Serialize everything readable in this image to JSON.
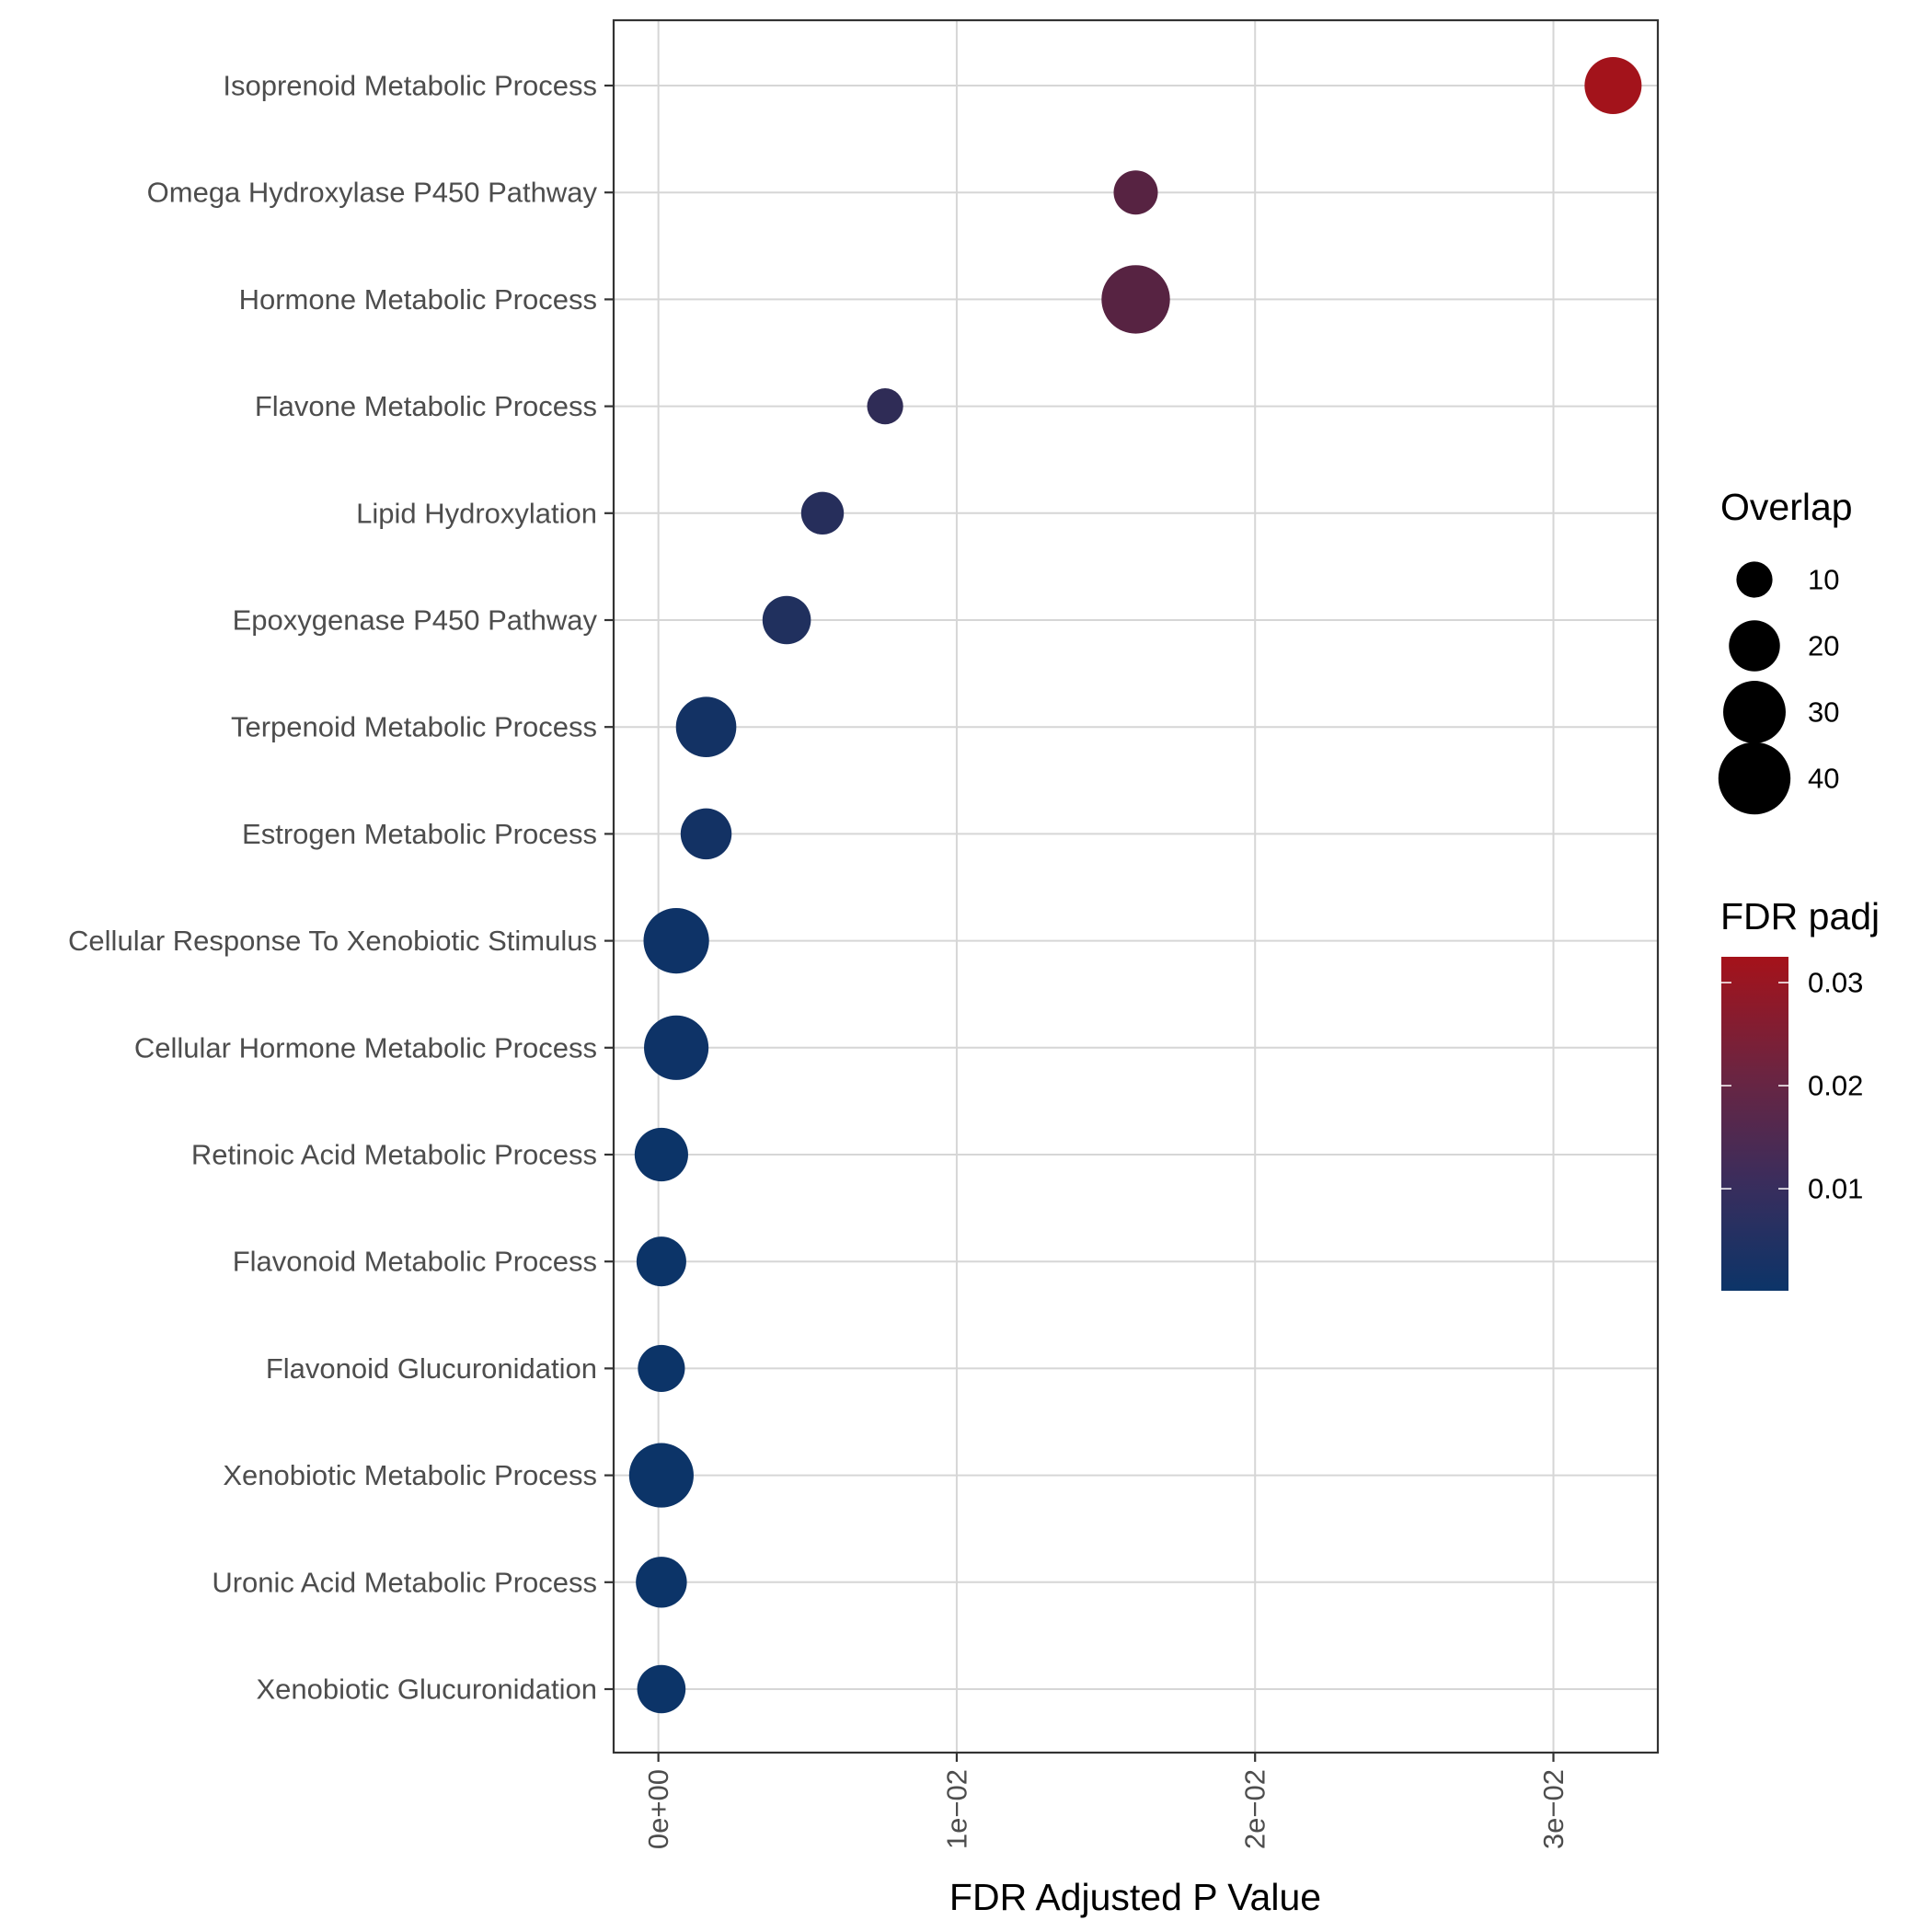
{
  "chart_data": {
    "type": "scatter",
    "xlabel": "FDR Adjusted P Value",
    "ylabel": "",
    "xlim": [
      -0.0015,
      0.0335
    ],
    "x_ticks": [
      0,
      0.01,
      0.02,
      0.03
    ],
    "x_tick_labels": [
      "0e+00",
      "1e−02",
      "2e−02",
      "3e−02"
    ],
    "grid": true,
    "categories": [
      "Isoprenoid Metabolic Process",
      "Omega Hydroxylase P450 Pathway",
      "Hormone Metabolic Process",
      "Flavone Metabolic Process",
      "Lipid Hydroxylation",
      "Epoxygenase P450 Pathway",
      "Terpenoid Metabolic Process",
      "Estrogen Metabolic Process",
      "Cellular Response To Xenobiotic Stimulus",
      "Cellular Hormone Metabolic Process",
      "Retinoic Acid Metabolic Process",
      "Flavonoid Metabolic Process",
      "Flavonoid Glucuronidation",
      "Xenobiotic Metabolic Process",
      "Uronic Acid Metabolic Process",
      "Xenobiotic Glucuronidation"
    ],
    "x": [
      0.032,
      0.016,
      0.016,
      0.0076,
      0.0055,
      0.0043,
      0.0016,
      0.0016,
      0.0006,
      0.0006,
      0.0001,
      0.0001,
      0.0001,
      0.0001,
      0.0001,
      0.0001
    ],
    "overlap": [
      25,
      15,
      36,
      10,
      14,
      18,
      28,
      20,
      33,
      32,
      22,
      19,
      17,
      32,
      20,
      18
    ],
    "fdr_padj": [
      0.032,
      0.016,
      0.016,
      0.0076,
      0.0055,
      0.0043,
      0.0016,
      0.0016,
      0.0006,
      0.0006,
      0.0001,
      0.0001,
      0.0001,
      0.0001,
      0.0001,
      0.0001
    ],
    "size_legend": {
      "title": "Overlap",
      "values": [
        10,
        20,
        30,
        40
      ],
      "labels": [
        "10",
        "20",
        "30",
        "40"
      ]
    },
    "color_legend": {
      "title": "FDR padj",
      "range": [
        0.0001,
        0.0325
      ],
      "ticks": [
        0.03,
        0.02,
        0.01
      ],
      "tick_labels": [
        "0.03",
        "0.02",
        "0.01"
      ],
      "low_color": "#0c3468",
      "high_color": "#a5121a"
    },
    "legend_position": "right"
  }
}
